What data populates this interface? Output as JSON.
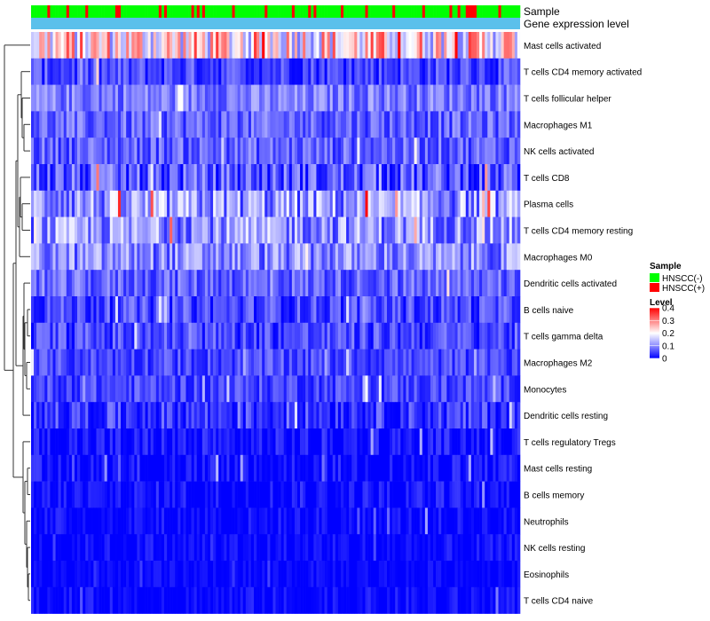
{
  "chart_data": {
    "type": "heatmap",
    "title": "",
    "annotation_rows": [
      {
        "name": "Sample",
        "label": "Sample"
      },
      {
        "name": "Gene expression level",
        "label": "Gene expression level"
      }
    ],
    "rows": [
      {
        "label": "Mast cells activated",
        "mean": 0.22,
        "spread": 0.14
      },
      {
        "label": "T cells CD4 memory activated",
        "mean": 0.05,
        "spread": 0.05
      },
      {
        "label": "T cells follicular helper",
        "mean": 0.09,
        "spread": 0.05
      },
      {
        "label": "Macrophages M1",
        "mean": 0.07,
        "spread": 0.05
      },
      {
        "label": "NK cells activated",
        "mean": 0.07,
        "spread": 0.05
      },
      {
        "label": "T cells CD8",
        "mean": 0.06,
        "spread": 0.07
      },
      {
        "label": "Plasma cells",
        "mean": 0.11,
        "spread": 0.09
      },
      {
        "label": "T cells CD4 memory resting",
        "mean": 0.11,
        "spread": 0.08
      },
      {
        "label": "Macrophages M0",
        "mean": 0.1,
        "spread": 0.07
      },
      {
        "label": "Dendritic cells activated",
        "mean": 0.07,
        "spread": 0.05
      },
      {
        "label": "B cells naive",
        "mean": 0.05,
        "spread": 0.05
      },
      {
        "label": "T cells gamma delta",
        "mean": 0.05,
        "spread": 0.05
      },
      {
        "label": "Macrophages M2",
        "mean": 0.05,
        "spread": 0.04
      },
      {
        "label": "Monocytes",
        "mean": 0.05,
        "spread": 0.04
      },
      {
        "label": "Dendritic cells resting",
        "mean": 0.04,
        "spread": 0.05
      },
      {
        "label": "T cells regulatory  Tregs",
        "mean": 0.01,
        "spread": 0.04
      },
      {
        "label": "Mast cells resting",
        "mean": 0.005,
        "spread": 0.04
      },
      {
        "label": "B cells memory",
        "mean": 0.005,
        "spread": 0.04
      },
      {
        "label": "Neutrophils",
        "mean": 0.005,
        "spread": 0.03
      },
      {
        "label": "NK cells resting",
        "mean": 0.003,
        "spread": 0.03
      },
      {
        "label": "Eosinophils",
        "mean": 0.003,
        "spread": 0.02
      },
      {
        "label": "T cells CD4 naive",
        "mean": 0.003,
        "spread": 0.03
      }
    ],
    "n_samples": 180,
    "sample_group_fraction_positive": 0.2,
    "color_scale": {
      "min": 0,
      "max": 0.4,
      "stops": [
        {
          "value": 0,
          "color": "#0000ff"
        },
        {
          "value": 0.1,
          "color": "#8c8cff"
        },
        {
          "value": 0.2,
          "color": "#ffffff"
        },
        {
          "value": 0.3,
          "color": "#ff8080"
        },
        {
          "value": 0.4,
          "color": "#ff0000"
        }
      ]
    },
    "legend": {
      "sample": {
        "title": "Sample",
        "entries": [
          {
            "label": "HNSCC(-)",
            "color": "#00ff00"
          },
          {
            "label": "HNSCC(+)",
            "color": "#ff0000"
          }
        ]
      },
      "level": {
        "title": "Level",
        "ticks": [
          "0.4",
          "0.3",
          "0.2",
          "0.1",
          "0"
        ]
      }
    },
    "gene_expression_bar_color": "#5bc0eb",
    "legend_position": "right"
  }
}
